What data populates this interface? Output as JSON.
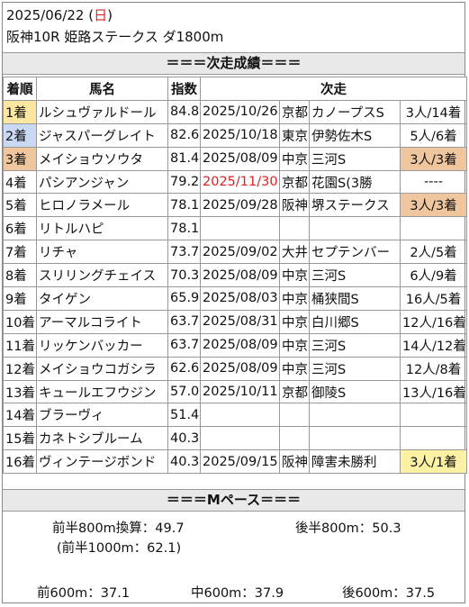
{
  "header": {
    "date": "2025/06/22",
    "weekday_open": " (",
    "weekday": "日",
    "weekday_close": ")",
    "race": "阪神10R 姫路ステークス ダ1800m"
  },
  "section_title": "＝＝＝次走成績＝＝＝",
  "columns": [
    "着順",
    "馬名",
    "指数",
    "次走"
  ],
  "rows": [
    {
      "pos": "1着",
      "name": "ルシュヴァルドール",
      "idx": "84.8",
      "date": "2025/10/26",
      "track": "京都",
      "race": "カノープスS",
      "result": "3人/14着"
    },
    {
      "pos": "2着",
      "name": "ジャスパーグレイト",
      "idx": "82.6",
      "date": "2025/10/18",
      "track": "東京",
      "race": "伊勢佐木S",
      "result": "5人/6着"
    },
    {
      "pos": "3着",
      "name": "メイショウソウタ",
      "idx": "81.4",
      "date": "2025/08/09",
      "track": "中京",
      "race": "三河S",
      "result": "3人/3着"
    },
    {
      "pos": "4着",
      "name": "パシアンジャン",
      "idx": "79.2",
      "date": "2025/11/30",
      "track": "京都",
      "race": "花園S(3勝",
      "result": "----"
    },
    {
      "pos": "5着",
      "name": "ヒロノラメール",
      "idx": "78.1",
      "date": "2025/09/28",
      "track": "阪神",
      "race": "堺ステークス",
      "result": "3人/3着"
    },
    {
      "pos": "6着",
      "name": "リトルハピ",
      "idx": "78.1",
      "date": "",
      "track": "",
      "race": "",
      "result": ""
    },
    {
      "pos": "7着",
      "name": "リチャ",
      "idx": "73.7",
      "date": "2025/09/02",
      "track": "大井",
      "race": "セプテンバー",
      "result": "2人/5着"
    },
    {
      "pos": "8着",
      "name": "スリリングチェイス",
      "idx": "70.3",
      "date": "2025/08/09",
      "track": "中京",
      "race": "三河S",
      "result": "6人/9着"
    },
    {
      "pos": "9着",
      "name": "タイゲン",
      "idx": "65.9",
      "date": "2025/08/03",
      "track": "中京",
      "race": "桶狭間S",
      "result": "16人/5着"
    },
    {
      "pos": "10着",
      "name": "アーマルコライト",
      "idx": "63.7",
      "date": "2025/08/31",
      "track": "中京",
      "race": "白川郷S",
      "result": "12人/16着"
    },
    {
      "pos": "11着",
      "name": "リッケンバッカー",
      "idx": "63.7",
      "date": "2025/08/09",
      "track": "中京",
      "race": "三河S",
      "result": "14人/12着"
    },
    {
      "pos": "12着",
      "name": "メイショウコガシラ",
      "idx": "62.6",
      "date": "2025/08/09",
      "track": "中京",
      "race": "三河S",
      "result": "12人/8着"
    },
    {
      "pos": "13着",
      "name": "キュールエフウジン",
      "idx": "57.0",
      "date": "2025/10/11",
      "track": "京都",
      "race": "御陵S",
      "result": "13人/16着"
    },
    {
      "pos": "14着",
      "name": "ブラーヴィ",
      "idx": "51.4",
      "date": "",
      "track": "",
      "race": "",
      "result": ""
    },
    {
      "pos": "15着",
      "name": "カネトシブルーム",
      "idx": "40.3",
      "date": "",
      "track": "",
      "race": "",
      "result": ""
    },
    {
      "pos": "16着",
      "name": "ヴィンテージボンド",
      "idx": "40.3",
      "date": "2025/09/15",
      "track": "阪神",
      "race": "障害未勝利",
      "result": "3人/1着"
    }
  ],
  "highlight_colors": {
    "gold": "#fbe7a1",
    "silver": "#c9d9f3",
    "bronze": "#f0c69e",
    "yellow": "#fdf2a3",
    "future_date": "#e02020"
  },
  "pace": {
    "title": "＝＝＝Mペース＝＝＝",
    "first_half_800": "前半800m換算：49.7",
    "second_half_800": "後半800m：50.3",
    "first_half_1000": "(前半1000m：62.1)",
    "first_600": "前600m：37.1",
    "mid_600": "中600m：37.9",
    "last_600": "後600m：37.5"
  }
}
